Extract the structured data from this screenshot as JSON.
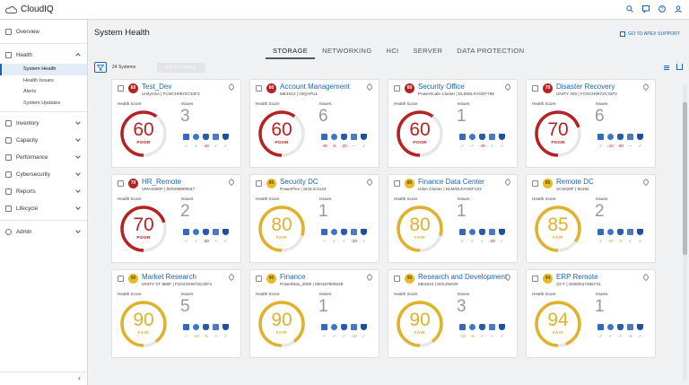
{
  "app": {
    "name": "CloudIQ"
  },
  "sidebar": {
    "items": [
      {
        "label": "Overview"
      },
      {
        "label": "Health"
      },
      {
        "label": "Inventory"
      },
      {
        "label": "Capacity"
      },
      {
        "label": "Performance"
      },
      {
        "label": "Cybersecurity"
      },
      {
        "label": "Reports"
      },
      {
        "label": "Lifecycle"
      },
      {
        "label": "Admin"
      }
    ],
    "health_sub": [
      {
        "label": "System Health"
      },
      {
        "label": "Health Issues"
      },
      {
        "label": "Alerts"
      },
      {
        "label": "System Updates"
      }
    ]
  },
  "page": {
    "title": "System Health",
    "apex_link": "GO TO APEX SUPPORT",
    "tabs": [
      "STORAGE",
      "NETWORKING",
      "HCI",
      "SERVER",
      "DATA PROTECTION"
    ],
    "active_tab": "STORAGE",
    "systems_count": "24 Systems",
    "edit_labels": "EDIT LABELS",
    "health_score_label": "Health Score",
    "issues_label": "Issues"
  },
  "colors": {
    "poor": "#b72121",
    "fair": "#e0b12a",
    "accent": "#1a64b4",
    "ok": "#3f9a3f"
  },
  "cards": [
    {
      "name": "Test_Dev",
      "sub": "UnityVSA | FCNCH0972C32F3",
      "score": "60",
      "status": "POOR",
      "issues": "3",
      "level": "poor",
      "vals": [
        "✓",
        "✓",
        "-40",
        "✓",
        "✓"
      ]
    },
    {
      "name": "Account Management",
      "sub": "ME4012 | OIQAPU1",
      "score": "60",
      "status": "POOR",
      "issues": "6",
      "level": "poor",
      "vals": [
        "-40",
        "-5",
        "-30",
        "–",
        "✓"
      ]
    },
    {
      "name": "Security Office",
      "sub": "PowerScale Cluster | ELMISLFAGEF789",
      "score": "60",
      "status": "POOR",
      "issues": "1",
      "level": "poor",
      "vals": [
        "✓",
        "✓",
        "-40",
        "✓",
        "✓"
      ]
    },
    {
      "name": "Disaster Recovery",
      "sub": "UNITY 400 | FCNCH0972C32F2",
      "score": "70",
      "status": "POOR",
      "issues": "6",
      "level": "poor",
      "vals": [
        "✓",
        "-10",
        "-30",
        "–",
        "✓"
      ]
    },
    {
      "name": "HR_Remote",
      "sub": "VMAX950F | 000296800647",
      "score": "70",
      "status": "POOR",
      "issues": "2",
      "level": "poor",
      "vals": [
        "–",
        "✓",
        "-30",
        "–",
        "✓"
      ]
    },
    {
      "name": "Security DC",
      "sub": "PowerFlex | SIOLIC1124",
      "score": "80",
      "status": "FAIR",
      "issues": "1",
      "level": "fair",
      "vals": [
        "–",
        "✓",
        "✓",
        "-20",
        "✓"
      ]
    },
    {
      "name": "Finance Data Center",
      "sub": "Isilon Cluster | ELMISLFAGEF123",
      "score": "80",
      "status": "FAIR",
      "issues": "1",
      "level": "fair",
      "vals": [
        "✓",
        "✓",
        "✓",
        "-20",
        "✓"
      ]
    },
    {
      "name": "Remote DC",
      "sub": "SC5020F | 92252",
      "score": "85",
      "status": "FAIR",
      "issues": "2",
      "level": "fair",
      "vals": [
        "✓",
        "-10",
        "-5",
        "✓",
        "✓"
      ]
    },
    {
      "name": "Market Research",
      "sub": "UNITY XT 880F | FCNCH0972C32F4",
      "score": "90",
      "status": "FAIR",
      "issues": "5",
      "level": "fair",
      "vals": [
        "✓",
        "-10",
        "-5",
        "–",
        "✓"
      ]
    },
    {
      "name": "Finance",
      "sub": "PowerMax_2000 | 000197900049",
      "score": "90",
      "status": "FAIR",
      "issues": "1",
      "level": "fair",
      "vals": [
        "–",
        "✓",
        "✓",
        "-10",
        "✓"
      ]
    },
    {
      "name": "Research and Development",
      "sub": "ME4024 | MJLZWGR",
      "score": "90",
      "status": "FAIR",
      "issues": "3",
      "level": "fair",
      "vals": [
        "-10",
        "-5",
        "✓",
        "–",
        "✓"
      ]
    },
    {
      "name": "ERP Remote",
      "sub": "X2-T | SI000017465731",
      "score": "94",
      "status": "FAIR",
      "issues": "1",
      "level": "fair",
      "vals": [
        "✓",
        "✓",
        "✓",
        "-6",
        "✓"
      ]
    }
  ]
}
